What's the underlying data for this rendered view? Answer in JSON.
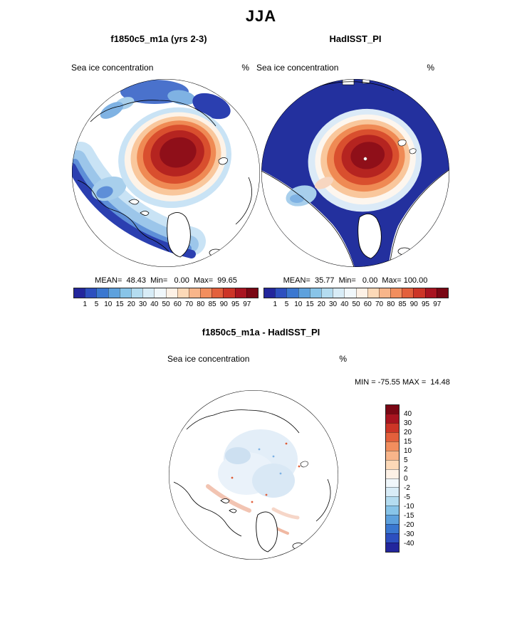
{
  "title": "JJA",
  "model": {
    "title": "f1850c5_m1a (yrs 2-3)",
    "var_label": "Sea ice concentration",
    "unit": "%",
    "stats": "MEAN=  48.43  Min=   0.00  Max=  99.65"
  },
  "obs": {
    "title": "HadISST_PI",
    "var_label": "Sea ice concentration",
    "unit": "%",
    "stats": "MEAN=  35.77  Min=   0.00  Max= 100.00"
  },
  "diff": {
    "title": "f1850c5_m1a - HadISST_PI",
    "var_label": "Sea ice concentration",
    "unit": "%",
    "minmax": "MIN = -75.55 MAX =  14.48"
  },
  "conc_ticks": [
    "1",
    "5",
    "10",
    "15",
    "20",
    "30",
    "40",
    "50",
    "60",
    "70",
    "80",
    "85",
    "90",
    "95",
    "97"
  ],
  "diff_ticks": [
    "40",
    "30",
    "20",
    "15",
    "10",
    "5",
    "2",
    "0",
    "-2",
    "-5",
    "-10",
    "-15",
    "-20",
    "-30",
    "-40"
  ],
  "conc_colors": [
    "#23269c",
    "#2d4fbf",
    "#3a77d0",
    "#5ea1dd",
    "#88c4e8",
    "#b4dcf0",
    "#d8ecf7",
    "#f0f7fb",
    "#fdf1e6",
    "#fcd9b8",
    "#f8b58a",
    "#f28e5e",
    "#e3603c",
    "#cc3527",
    "#a81420",
    "#7a0714"
  ],
  "diff_colors": [
    "#7a0714",
    "#a81420",
    "#cc3527",
    "#e3603c",
    "#f28e5e",
    "#f8b58a",
    "#fcd9b8",
    "#fdf1e6",
    "#f0f7fb",
    "#d8ecf7",
    "#b4dcf0",
    "#88c4e8",
    "#5ea1dd",
    "#3a77d0",
    "#2d4fbf",
    "#23269c"
  ],
  "chart_data": [
    {
      "type": "heatmap",
      "title": "f1850c5_m1a (yrs 2-3)",
      "season": "JJA",
      "variable": "Sea ice concentration",
      "units": "%",
      "projection": "north polar stereographic",
      "mean": 48.43,
      "min": 0.0,
      "max": 99.65,
      "levels": [
        1,
        5,
        10,
        15,
        20,
        30,
        40,
        50,
        60,
        70,
        80,
        85,
        90,
        95,
        97
      ],
      "legend_position": "bottom"
    },
    {
      "type": "heatmap",
      "title": "HadISST_PI",
      "season": "JJA",
      "variable": "Sea ice concentration",
      "units": "%",
      "projection": "north polar stereographic",
      "mean": 35.77,
      "min": 0.0,
      "max": 100.0,
      "levels": [
        1,
        5,
        10,
        15,
        20,
        30,
        40,
        50,
        60,
        70,
        80,
        85,
        90,
        95,
        97
      ],
      "legend_position": "bottom"
    },
    {
      "type": "heatmap",
      "title": "f1850c5_m1a - HadISST_PI",
      "season": "JJA",
      "variable": "Sea ice concentration difference",
      "units": "%",
      "projection": "north polar stereographic",
      "min": -75.55,
      "max": 14.48,
      "levels": [
        -40,
        -30,
        -20,
        -15,
        -10,
        -5,
        -2,
        0,
        2,
        5,
        10,
        15,
        20,
        30,
        40
      ],
      "legend_position": "right"
    }
  ]
}
